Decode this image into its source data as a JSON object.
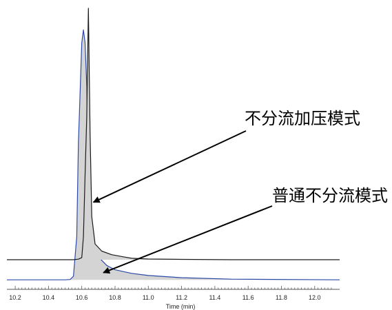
{
  "chart_data": {
    "type": "line",
    "title": "",
    "xlabel": "Time (min)",
    "ylabel": "",
    "xlim": [
      10.15,
      12.15
    ],
    "grid": false,
    "x_ticks": [
      "10.2",
      "10.4",
      "10.6",
      "10.8",
      "11.0",
      "11.2",
      "11.4",
      "11.6",
      "11.8",
      "12.0"
    ],
    "series": [
      {
        "color": "#1a1a1a",
        "fill": "#d4d4d4",
        "baseline": 0,
        "x": [
          10.15,
          10.55,
          10.58,
          10.6,
          10.61,
          10.62,
          10.63,
          10.64,
          10.65,
          10.66,
          10.68,
          10.72,
          10.78,
          10.85,
          10.9,
          11.0,
          11.2,
          11.5,
          12.15
        ],
        "y": [
          0,
          0,
          0.8,
          3,
          32,
          118,
          198,
          350,
          175,
          60,
          22,
          12,
          7,
          4,
          2,
          1,
          0.5,
          0,
          0
        ]
      },
      {
        "color": "#2b4aa8",
        "fill": "#d4d4d4",
        "baseline": -28,
        "x": [
          10.15,
          10.5,
          10.53,
          10.55,
          10.57,
          10.58,
          10.6,
          10.61,
          10.62,
          10.63,
          10.64,
          10.65,
          10.7,
          10.75,
          10.8,
          10.9,
          11.0,
          11.2,
          11.5,
          12.15
        ],
        "y": [
          0,
          0,
          0.5,
          5,
          60,
          190,
          330,
          348,
          330,
          270,
          150,
          70,
          32,
          20,
          14,
          9,
          6,
          3,
          1,
          0
        ]
      }
    ],
    "annotations": [
      {
        "text": "不分流加压模式",
        "arrow_to": [
          10.67,
          80
        ]
      },
      {
        "text": "普通不分流模式",
        "arrow_to": [
          10.73,
          10
        ]
      }
    ]
  }
}
